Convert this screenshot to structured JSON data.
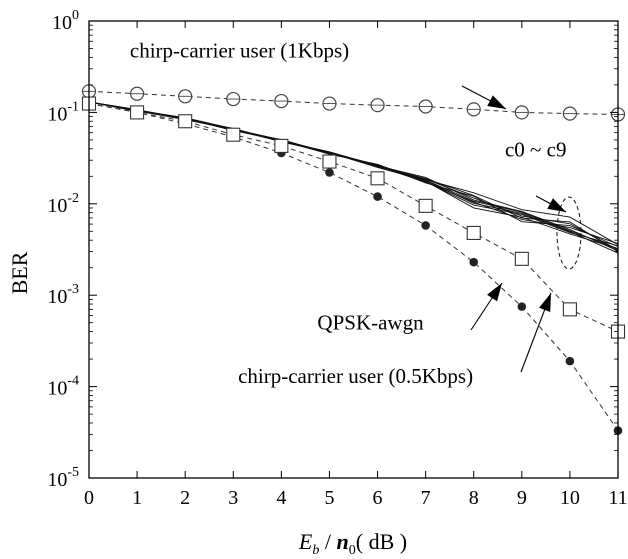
{
  "chart_data": {
    "type": "line",
    "xlabel": {
      "main": "E",
      "sub1": "b",
      "mid": " / ",
      "main2": "n",
      "sub2": "0",
      "tail": "( dB )"
    },
    "ylabel": "BER",
    "xlim": [
      0,
      11
    ],
    "ylim": [
      1e-05,
      1
    ],
    "yscale": "log",
    "grid": false,
    "xticks": [
      "0",
      "1",
      "2",
      "3",
      "4",
      "5",
      "6",
      "7",
      "8",
      "9",
      "10",
      "11"
    ],
    "yticks": [
      {
        "base": "10",
        "exp": "0"
      },
      {
        "base": "10",
        "exp": "-1"
      },
      {
        "base": "10",
        "exp": "-2"
      },
      {
        "base": "10",
        "exp": "-3"
      },
      {
        "base": "10",
        "exp": "-4"
      },
      {
        "base": "10",
        "exp": "-5"
      }
    ],
    "series": [
      {
        "marker": "circle-open",
        "x": [
          0,
          1,
          2,
          3,
          4,
          5,
          6,
          7,
          8,
          9,
          10,
          11
        ],
        "values": [
          0.17,
          0.16,
          0.15,
          0.14,
          0.133,
          0.125,
          0.12,
          0.116,
          0.108,
          0.1,
          0.097,
          0.095
        ]
      },
      {
        "marker": "dot",
        "x": [
          0,
          1,
          2,
          3,
          4,
          5,
          6,
          7,
          8,
          9,
          10,
          11
        ],
        "values": [
          0.125,
          0.1,
          0.075,
          0.054,
          0.036,
          0.022,
          0.012,
          0.0058,
          0.0023,
          0.00075,
          0.00019,
          3.3e-05
        ]
      },
      {
        "marker": "square-open",
        "x": [
          0,
          1,
          2,
          3,
          4,
          5,
          6,
          7,
          8,
          9,
          10,
          11
        ],
        "values": [
          0.125,
          0.1,
          0.08,
          0.057,
          0.043,
          0.029,
          0.019,
          0.0095,
          0.0048,
          0.0025,
          0.0007,
          0.0004
        ]
      }
    ],
    "bundle": {
      "x": [
        0,
        1,
        2,
        3,
        4,
        5,
        6,
        7,
        8,
        9,
        10,
        11
      ],
      "base": [
        0.13,
        0.105,
        0.085,
        0.065,
        0.049,
        0.036,
        0.026,
        0.018,
        0.011,
        0.0075,
        0.0055,
        0.0034
      ],
      "factors": [
        [
          1.0,
          0.98,
          1.02,
          0.97,
          1.03,
          1.0,
          0.98,
          1.02,
          1.2,
          1.15,
          1.3,
          1.05
        ],
        [
          1.0,
          1.02,
          0.98,
          1.03,
          0.97,
          1.02,
          1.02,
          0.98,
          0.82,
          0.95,
          0.85,
          0.95
        ],
        [
          1.0,
          0.99,
          1.01,
          1.0,
          0.99,
          1.03,
          1.0,
          1.08,
          1.0,
          1.1,
          0.95,
          0.9
        ],
        [
          1.0,
          1.01,
          0.99,
          0.99,
          1.01,
          0.97,
          1.04,
          0.94,
          1.1,
          0.85,
          1.05,
          1.0
        ],
        [
          1.0,
          1.0,
          1.03,
          1.02,
          0.98,
          1.01,
          0.96,
          1.0,
          0.92,
          1.05,
          0.9,
          0.85
        ],
        [
          1.0,
          0.99,
          0.98,
          1.01,
          1.02,
          0.99,
          1.01,
          1.04,
          1.05,
          0.98,
          1.1,
          0.92
        ],
        [
          1.0,
          1.01,
          1.0,
          0.98,
          1.0,
          1.02,
          0.99,
          0.96,
          0.95,
          0.9,
          1.0,
          1.08
        ],
        [
          1.0,
          1.0,
          0.99,
          1.02,
          0.99,
          0.98,
          1.03,
          1.01,
          0.97,
          1.08,
          0.92,
          0.95
        ],
        [
          1.0,
          1.02,
          1.01,
          1.0,
          1.02,
          1.0,
          0.98,
          1.05,
          1.12,
          0.93,
          1.15,
          0.88
        ],
        [
          1.0,
          0.98,
          1.0,
          0.99,
          0.98,
          1.01,
          1.0,
          0.97,
          0.88,
          1.02,
          0.88,
          1.02
        ]
      ]
    },
    "annotations": [
      {
        "text": "chirp-carrier user (1Kbps)",
        "x": 0.85,
        "y": 0.4
      },
      {
        "text": "c0 ~ c9",
        "x": 8.65,
        "y": 0.033
      },
      {
        "text": "QPSK-awgn",
        "x": 4.75,
        "y": 0.00042
      },
      {
        "text": "chirp-carrier user (0.5Kbps)",
        "x": 3.1,
        "y": 0.00011
      }
    ]
  }
}
